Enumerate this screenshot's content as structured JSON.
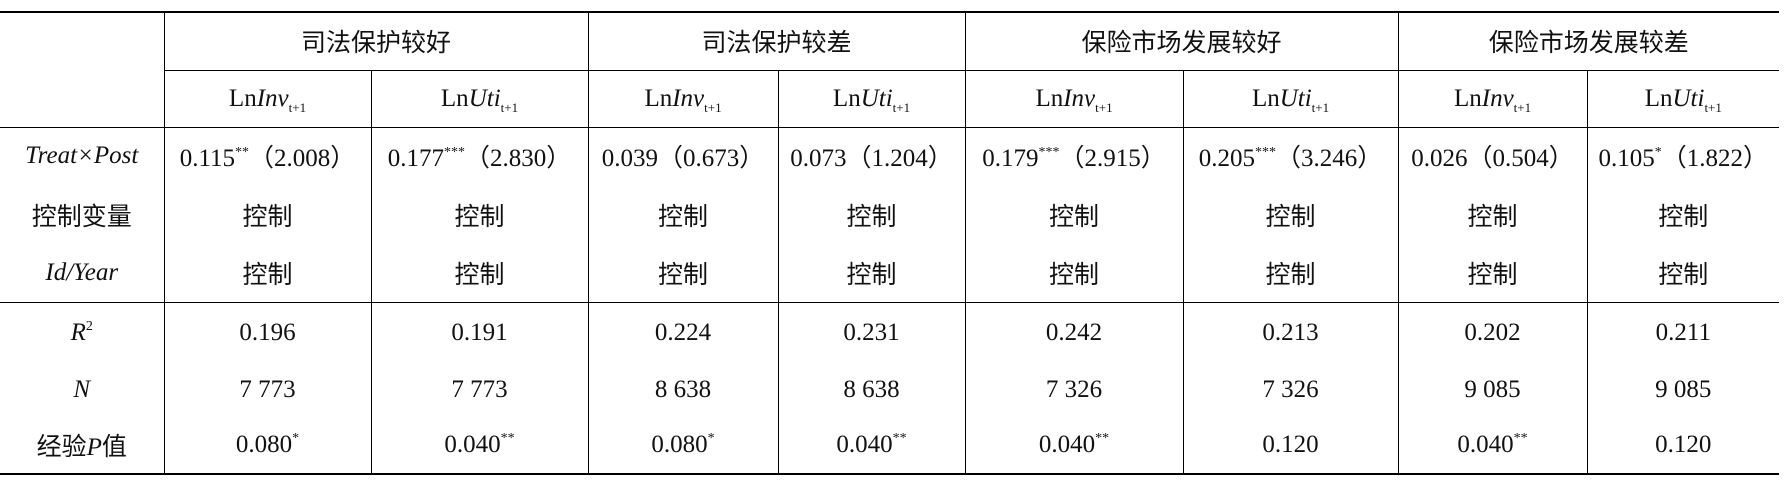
{
  "table": {
    "groups": [
      "司法保护较好",
      "司法保护较差",
      "保险市场发展较好",
      "保险市场发展较差"
    ],
    "columns": [
      {
        "prefix": "Ln",
        "var": "Inv",
        "sub": "t+1"
      },
      {
        "prefix": "Ln",
        "var": "Uti",
        "sub": "t+1"
      },
      {
        "prefix": "Ln",
        "var": "Inv",
        "sub": "t+1"
      },
      {
        "prefix": "Ln",
        "var": "Uti",
        "sub": "t+1"
      },
      {
        "prefix": "Ln",
        "var": "Inv",
        "sub": "t+1"
      },
      {
        "prefix": "Ln",
        "var": "Uti",
        "sub": "t+1"
      },
      {
        "prefix": "Ln",
        "var": "Inv",
        "sub": "t+1"
      },
      {
        "prefix": "Ln",
        "var": "Uti",
        "sub": "t+1"
      }
    ],
    "rows": [
      {
        "label": [
          {
            "text": "Treat×Post",
            "italic": true
          }
        ],
        "cells": [
          {
            "value": "0.115",
            "stars": "**",
            "paren": "（2.008）"
          },
          {
            "value": "0.177",
            "stars": "***",
            "paren": "（2.830）"
          },
          {
            "value": "0.039",
            "paren": "（0.673）"
          },
          {
            "value": "0.073",
            "paren": "（1.204）"
          },
          {
            "value": "0.179",
            "stars": "***",
            "paren": "（2.915）"
          },
          {
            "value": "0.205",
            "stars": "***",
            "paren": "（3.246）"
          },
          {
            "value": "0.026",
            "paren": "（0.504）"
          },
          {
            "value": "0.105",
            "stars": "*",
            "paren": "（1.822）"
          }
        ]
      },
      {
        "label": [
          {
            "text": "控制变量"
          }
        ],
        "cells": [
          {
            "value": "控制"
          },
          {
            "value": "控制"
          },
          {
            "value": "控制"
          },
          {
            "value": "控制"
          },
          {
            "value": "控制"
          },
          {
            "value": "控制"
          },
          {
            "value": "控制"
          },
          {
            "value": "控制"
          }
        ]
      },
      {
        "label": [
          {
            "text": "Id/Year",
            "italic": true
          }
        ],
        "cells": [
          {
            "value": "控制"
          },
          {
            "value": "控制"
          },
          {
            "value": "控制"
          },
          {
            "value": "控制"
          },
          {
            "value": "控制"
          },
          {
            "value": "控制"
          },
          {
            "value": "控制"
          },
          {
            "value": "控制"
          }
        ]
      },
      {
        "label": [
          {
            "text": "R",
            "italic": true,
            "sup": "2"
          }
        ],
        "cells": [
          {
            "value": "0.196"
          },
          {
            "value": "0.191"
          },
          {
            "value": "0.224"
          },
          {
            "value": "0.231"
          },
          {
            "value": "0.242"
          },
          {
            "value": "0.213"
          },
          {
            "value": "0.202"
          },
          {
            "value": "0.211"
          }
        ]
      },
      {
        "label": [
          {
            "text": "N",
            "italic": true
          }
        ],
        "cells": [
          {
            "value": "7 773"
          },
          {
            "value": "7 773"
          },
          {
            "value": "8 638"
          },
          {
            "value": "8 638"
          },
          {
            "value": "7 326"
          },
          {
            "value": "7 326"
          },
          {
            "value": "9 085"
          },
          {
            "value": "9 085"
          }
        ]
      },
      {
        "label": [
          {
            "text": "经验"
          },
          {
            "text": "P",
            "italic": true
          },
          {
            "text": "值"
          }
        ],
        "cells": [
          {
            "value": "0.080",
            "stars": "*"
          },
          {
            "value": "0.040",
            "stars": "**"
          },
          {
            "value": "0.080",
            "stars": "*"
          },
          {
            "value": "0.040",
            "stars": "**"
          },
          {
            "value": "0.040",
            "stars": "**"
          },
          {
            "value": "0.120"
          },
          {
            "value": "0.040",
            "stars": "**"
          },
          {
            "value": "0.120"
          }
        ]
      }
    ]
  }
}
